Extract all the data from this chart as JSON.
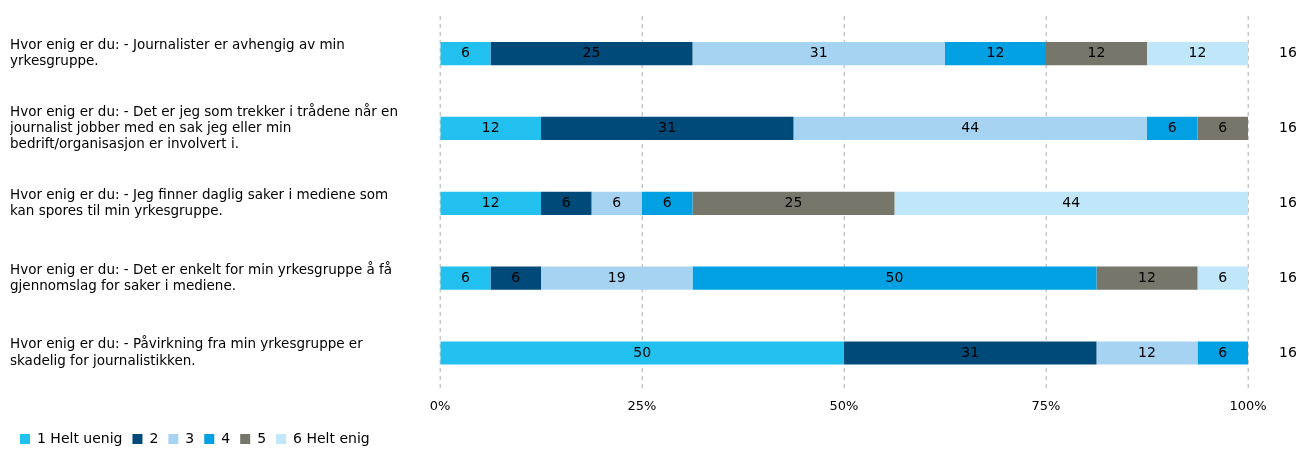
{
  "chart_data": {
    "type": "bar",
    "orientation": "horizontal",
    "stacked": true,
    "categories": [
      "Hvor enig er du: - Journalister er avhengig av min yrkesgruppe.",
      "Hvor enig er du: - Det er jeg som trekker i trådene når en journalist jobber med en sak jeg eller min bedrift/organisasjon er involvert i.",
      "Hvor enig er du: - Jeg finner daglig saker i mediene som kan spores til min yrkesgruppe.",
      "Hvor enig er du: - Det er enkelt for min yrkesgruppe å få gjennomslag for saker i mediene.",
      "Hvor enig er du: - Påvirkning fra min yrkesgruppe er skadelig for journalistikken."
    ],
    "series": [
      {
        "name": "1 Helt uenig",
        "color": "#21c0ef",
        "values": [
          6.25,
          12.5,
          12.5,
          6.25,
          50
        ],
        "value_labels": [
          "6",
          "12",
          "12",
          "6",
          "50"
        ]
      },
      {
        "name": "2",
        "color": "#004a7a",
        "values": [
          25,
          31.25,
          6.25,
          6.25,
          31.25
        ],
        "value_labels": [
          "25",
          "31",
          "6",
          "6",
          "31"
        ]
      },
      {
        "name": "3",
        "color": "#a7d3f3",
        "values": [
          31.25,
          43.75,
          6.25,
          18.75,
          12.5
        ],
        "value_labels": [
          "31",
          "44",
          "6",
          "19",
          "12"
        ]
      },
      {
        "name": "4",
        "color": "#00a0e3",
        "values": [
          12.5,
          6.25,
          6.25,
          50,
          6.25
        ],
        "value_labels": [
          "12",
          "6",
          "6",
          "50",
          "6"
        ]
      },
      {
        "name": "5",
        "color": "#77766a",
        "values": [
          12.5,
          6.25,
          25,
          12.5,
          null
        ],
        "value_labels": [
          "12",
          "6",
          "25",
          "12",
          null
        ]
      },
      {
        "name": "6 Helt enig",
        "color": "#bfe6f9",
        "values": [
          12.5,
          null,
          43.75,
          6.25,
          null
        ],
        "value_labels": [
          "12",
          null,
          "44",
          "6",
          null
        ]
      }
    ],
    "annotations": [
      "16",
      "16",
      "16",
      "16",
      "16"
    ],
    "xlim": [
      0,
      100
    ],
    "xticks": [
      {
        "value": 0,
        "label": "0%"
      },
      {
        "value": 25,
        "label": "25%"
      },
      {
        "value": 50,
        "label": "50%"
      },
      {
        "value": 75,
        "label": "75%"
      },
      {
        "value": 100,
        "label": "100%"
      }
    ],
    "grid": "x",
    "legend": "bottom"
  }
}
